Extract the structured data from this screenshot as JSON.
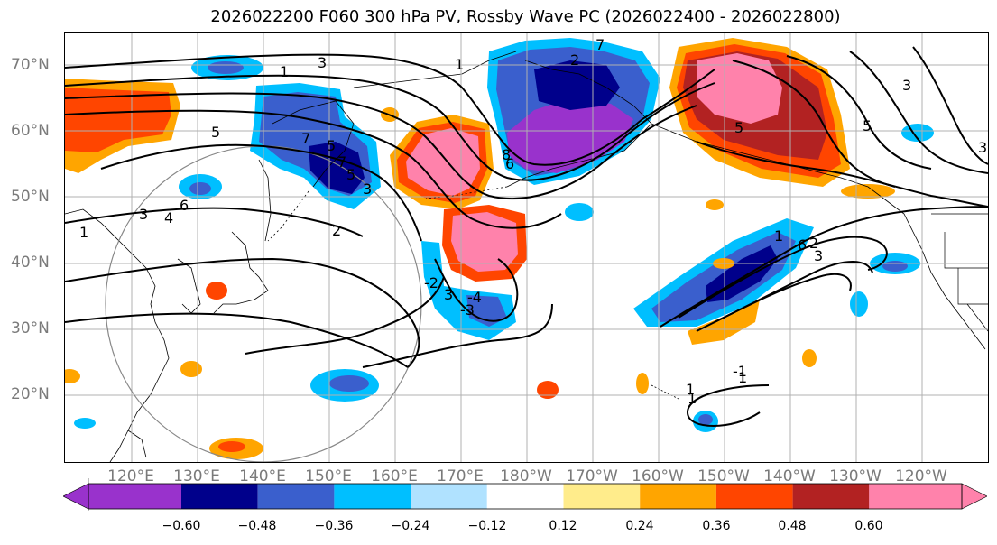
{
  "title": "2026022200 F060 300 hPa PV, Rossby Wave PC (2026022400 - 2026022800)",
  "lat_labels": [
    "70°N",
    "60°N",
    "50°N",
    "40°N",
    "30°N",
    "20°N"
  ],
  "lon_labels": [
    "120°E",
    "130°E",
    "140°E",
    "150°E",
    "160°E",
    "170°E",
    "180°W",
    "170°W",
    "160°W",
    "150°W",
    "140°W",
    "130°W",
    "120°W"
  ],
  "colorbar": {
    "ticks": [
      "−0.60",
      "−0.48",
      "−0.36",
      "−0.24",
      "−0.12",
      "0.12",
      "0.24",
      "0.36",
      "0.48",
      "0.60"
    ],
    "colors": [
      "#9932cc",
      "#00008b",
      "#3a5fcd",
      "#00bfff",
      "#b0e2ff",
      "#ffffff",
      "#ffec8b",
      "#ffa500",
      "#ff4500",
      "#b22222",
      "#ff82ab"
    ]
  },
  "contour_labels": [
    "1",
    "3",
    "5",
    "7",
    "5",
    "3",
    "1",
    "7",
    "5",
    "3",
    "2",
    "4",
    "6",
    "-2",
    "1",
    "3",
    "-4",
    "-3",
    "8",
    "6",
    "1",
    "2",
    "3",
    "-1",
    "1",
    "3",
    "5",
    "7",
    "6",
    "5",
    "3",
    "1",
    "1",
    "2"
  ]
}
